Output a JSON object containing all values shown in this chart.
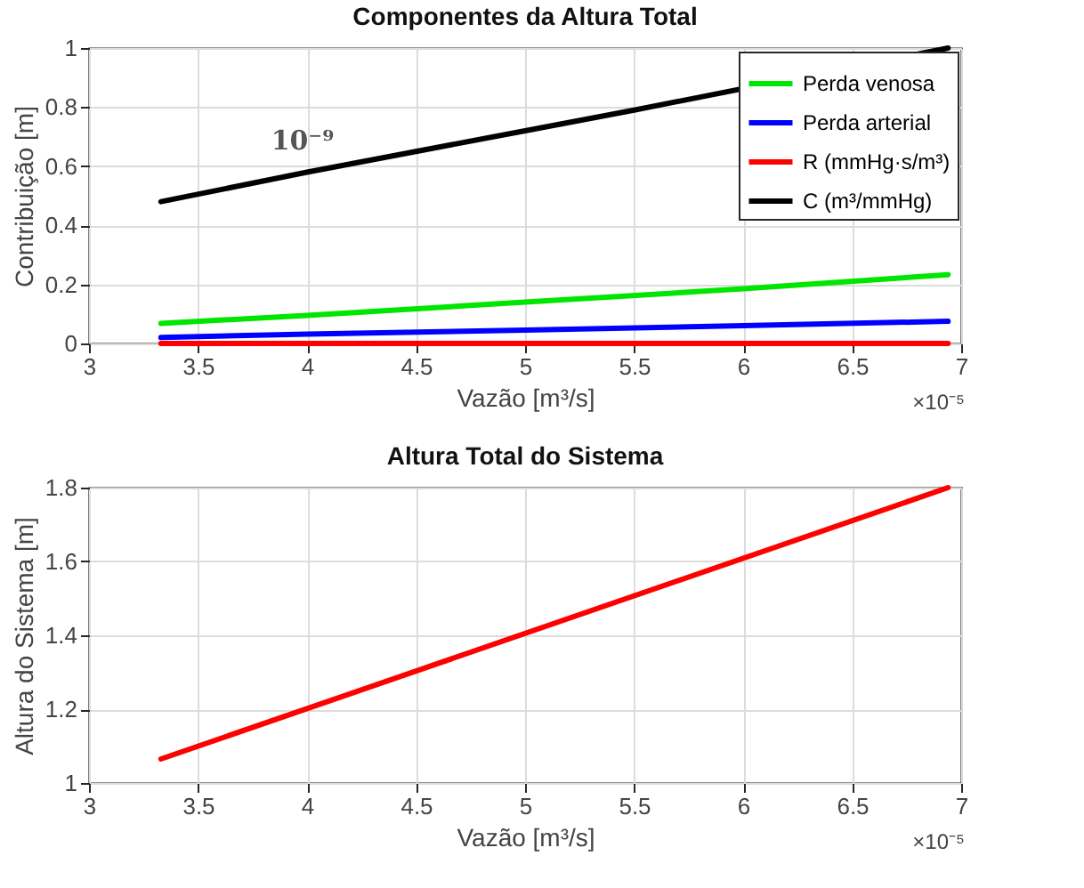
{
  "chart_data": [
    {
      "type": "line",
      "title": "Componentes da Altura Total",
      "xlabel": "Vazão [m³/s]",
      "ylabel": "Contribuição [m]",
      "x": [
        3.33,
        4,
        5,
        6,
        6.94
      ],
      "xlim": [
        3,
        7
      ],
      "xticks": [
        3,
        3.5,
        4,
        4.5,
        5,
        5.5,
        6,
        6.5,
        7
      ],
      "ylim": [
        0,
        1
      ],
      "yticks": [
        0,
        0.2,
        0.4,
        0.6,
        0.8,
        1
      ],
      "grid": true,
      "legend": "top right",
      "annotations": [
        "10⁻⁹",
        "×10⁻⁵"
      ],
      "series": [
        {
          "name": "Perda venosa",
          "color": "#00e600",
          "values": [
            0.068,
            0.095,
            0.14,
            0.185,
            0.233
          ]
        },
        {
          "name": "Perda arterial",
          "color": "#0000ff",
          "values": [
            0.02,
            0.032,
            0.045,
            0.06,
            0.075
          ]
        },
        {
          "name": "R (mmHg·s/m³)",
          "color": "#ff0000",
          "values": [
            0,
            0,
            0,
            0,
            0
          ]
        },
        {
          "name": "C (m³/mmHg)",
          "color": "#000000",
          "x": [
            3.33,
            4,
            5,
            5.5,
            6.94
          ],
          "values": [
            0.48,
            0.58,
            0.72,
            0.79,
            1.0
          ]
        }
      ]
    },
    {
      "type": "line",
      "title": "Altura Total do Sistema",
      "xlabel": "Vazão [m³/s]",
      "ylabel": "Altura do Sistema [m]",
      "x": [
        3.33,
        6.94
      ],
      "xlim": [
        3,
        7
      ],
      "xticks": [
        3,
        3.5,
        4,
        4.5,
        5,
        5.5,
        6,
        6.5,
        7
      ],
      "ylim": [
        1,
        1.8
      ],
      "yticks": [
        1,
        1.2,
        1.4,
        1.6,
        1.8
      ],
      "grid": true,
      "annotations": [
        "×10⁻⁵"
      ],
      "series": [
        {
          "color": "#ff0000",
          "values": [
            1.065,
            1.8
          ]
        }
      ]
    }
  ]
}
